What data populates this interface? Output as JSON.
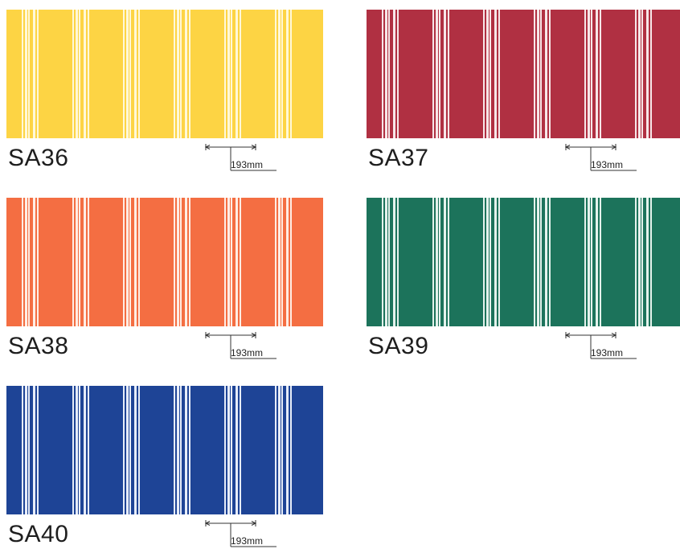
{
  "swatches": [
    {
      "code": "SA36",
      "color": "#FDD444",
      "stripe_color": "#FFF8D8",
      "width_label": "193mm"
    },
    {
      "code": "SA37",
      "color": "#B03042",
      "stripe_color": "#F7E6E8",
      "width_label": "193mm"
    },
    {
      "code": "SA38",
      "color": "#F46E42",
      "stripe_color": "#FFEDE4",
      "width_label": "193mm"
    },
    {
      "code": "SA39",
      "color": "#1C735B",
      "stripe_color": "#E4F2EC",
      "width_label": "193mm"
    },
    {
      "code": "SA40",
      "color": "#1E4496",
      "stripe_color": "#E6ECF8",
      "width_label": "193mm"
    }
  ]
}
